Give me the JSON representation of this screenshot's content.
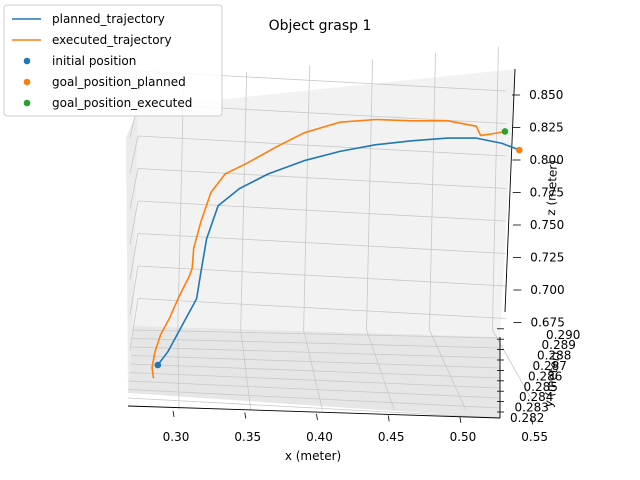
{
  "chart_data": {
    "type": "line",
    "projection": "3d",
    "title": "Object grasp 1",
    "xlabel": "x (meter)",
    "ylabel": "y (meter)",
    "zlabel": "z (meter)",
    "xlim": [
      0.27,
      0.56
    ],
    "ylim": [
      0.282,
      0.2905
    ],
    "zlim": [
      0.66,
      0.86
    ],
    "xticks": [
      "0.30",
      "0.35",
      "0.40",
      "0.45",
      "0.50",
      "0.55"
    ],
    "yticks": [
      "0.282",
      "0.283",
      "0.284",
      "0.285",
      "0.286",
      "0.287",
      "0.288",
      "0.289",
      "0.290"
    ],
    "zticks": [
      "0.675",
      "0.700",
      "0.725",
      "0.750",
      "0.775",
      "0.800",
      "0.825",
      "0.850"
    ],
    "grid": true,
    "legend_position": "top-left",
    "series": [
      {
        "name": "planned_trajectory",
        "kind": "line",
        "color": "#1f77b4",
        "x": [
          0.288,
          0.295,
          0.305,
          0.315,
          0.318,
          0.322,
          0.33,
          0.345,
          0.365,
          0.39,
          0.415,
          0.44,
          0.465,
          0.49,
          0.51,
          0.528,
          0.54
        ],
        "z": [
          0.645,
          0.655,
          0.675,
          0.695,
          0.715,
          0.74,
          0.765,
          0.778,
          0.789,
          0.799,
          0.806,
          0.811,
          0.814,
          0.816,
          0.816,
          0.812,
          0.807
        ]
      },
      {
        "name": "executed_trajectory",
        "kind": "line",
        "color": "#ff7f0e",
        "x": [
          0.285,
          0.284,
          0.286,
          0.29,
          0.296,
          0.303,
          0.31,
          0.312,
          0.313,
          0.318,
          0.325,
          0.335,
          0.35,
          0.37,
          0.39,
          0.415,
          0.44,
          0.465,
          0.49,
          0.51,
          0.513,
          0.52,
          0.53
        ],
        "z": [
          0.635,
          0.643,
          0.655,
          0.668,
          0.68,
          0.697,
          0.712,
          0.718,
          0.733,
          0.753,
          0.775,
          0.789,
          0.797,
          0.809,
          0.82,
          0.828,
          0.83,
          0.829,
          0.829,
          0.825,
          0.818,
          0.819,
          0.821
        ]
      },
      {
        "name": "initial position",
        "kind": "scatter",
        "color": "#1f77b4",
        "x": [
          0.288
        ],
        "z": [
          0.645
        ]
      },
      {
        "name": "goal_position_planned",
        "kind": "scatter",
        "color": "#ff7f0e",
        "x": [
          0.54
        ],
        "z": [
          0.807
        ]
      },
      {
        "name": "goal_position_executed",
        "kind": "scatter",
        "color": "#2ca02c",
        "x": [
          0.53
        ],
        "z": [
          0.821
        ]
      }
    ]
  }
}
